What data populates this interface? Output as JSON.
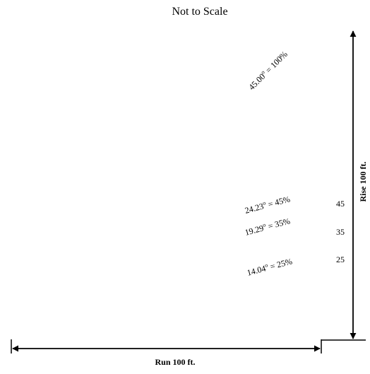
{
  "title": "Not to Scale",
  "run_label": "Run 100 ft.",
  "rise_label": "Rise 100 ft.",
  "slopes": [
    {
      "angle": "45.00",
      "percent": "100%"
    },
    {
      "angle": "24.23",
      "percent": "45%"
    },
    {
      "angle": "19.29",
      "percent": "35%"
    },
    {
      "angle": "14.04",
      "percent": "25%"
    }
  ],
  "rise_ticks": [
    "45",
    "35",
    "25"
  ],
  "colors": {
    "ink": "#000000",
    "background": "#ffffff"
  }
}
